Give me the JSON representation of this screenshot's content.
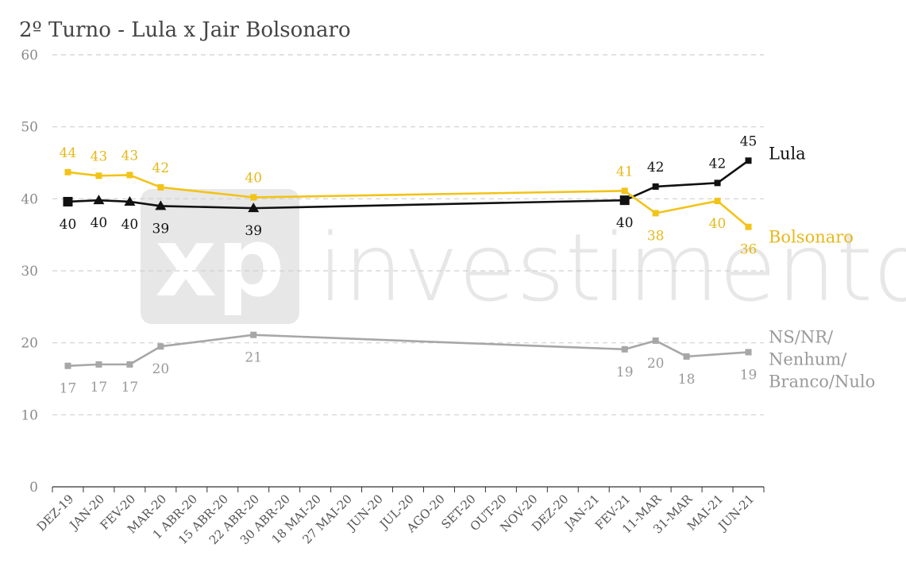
{
  "chart_data": {
    "type": "line",
    "title": "2º Turno - Lula x Jair Bolsonaro",
    "watermark": {
      "logo_text": "xp",
      "text": "investimentos"
    },
    "ylim": [
      0,
      60
    ],
    "yticks": [
      0,
      10,
      20,
      30,
      40,
      50,
      60
    ],
    "grid": true,
    "categories": [
      "DEZ-19",
      "JAN-20",
      "FEV-20",
      "MAR-20",
      "1 ABR-20",
      "15 ABR-20",
      "22 ABR-20",
      "30 ABR-20",
      "18 MAI-20",
      "27 MAI-20",
      "JUN-20",
      "JUL-20",
      "AGO-20",
      "SET-20",
      "OUT-20",
      "NOV-20",
      "DEZ-20",
      "JAN-21",
      "FEV-21",
      "11-MAR",
      "31-MAR",
      "MAI-21",
      "JUN-21"
    ],
    "series": [
      {
        "name": "Lula",
        "color": "#111111",
        "points": [
          {
            "x": "DEZ-19",
            "y": 39.6,
            "label": "40",
            "marker": "square-large",
            "label_pos": "below"
          },
          {
            "x": "JAN-20",
            "y": 39.8,
            "label": "40",
            "marker": "triangle",
            "label_pos": "below"
          },
          {
            "x": "FEV-20",
            "y": 39.6,
            "label": "40",
            "marker": "triangle",
            "label_pos": "below"
          },
          {
            "x": "MAR-20",
            "y": 39.0,
            "label": "39",
            "marker": "triangle",
            "label_pos": "below"
          },
          {
            "x": "22 ABR-20",
            "y": 38.7,
            "label": "39",
            "marker": "triangle",
            "label_pos": "below"
          },
          {
            "x": "FEV-21",
            "y": 39.8,
            "label": "40",
            "marker": "square-large",
            "label_pos": "below"
          },
          {
            "x": "11-MAR",
            "y": 41.7,
            "label": "42",
            "marker": "square-small",
            "label_pos": "above"
          },
          {
            "x": "MAI-21",
            "y": 42.2,
            "label": "42",
            "marker": "square-small",
            "label_pos": "above"
          },
          {
            "x": "JUN-21",
            "y": 45.3,
            "label": "45",
            "marker": "square-small",
            "label_pos": "above"
          }
        ]
      },
      {
        "name": "Bolsonaro",
        "color": "#f2c318",
        "label_color": "#e6b81a",
        "points": [
          {
            "x": "DEZ-19",
            "y": 43.7,
            "label": "44",
            "label_pos": "above"
          },
          {
            "x": "JAN-20",
            "y": 43.2,
            "label": "43",
            "label_pos": "above"
          },
          {
            "x": "FEV-20",
            "y": 43.3,
            "label": "43",
            "label_pos": "above"
          },
          {
            "x": "MAR-20",
            "y": 41.6,
            "label": "42",
            "label_pos": "above"
          },
          {
            "x": "22 ABR-20",
            "y": 40.2,
            "label": "40",
            "label_pos": "above"
          },
          {
            "x": "FEV-21",
            "y": 41.1,
            "label": "41",
            "label_pos": "above"
          },
          {
            "x": "11-MAR",
            "y": 38.0,
            "label": "38",
            "label_pos": "below"
          },
          {
            "x": "MAI-21",
            "y": 39.7,
            "label": "40",
            "label_pos": "below"
          },
          {
            "x": "JUN-21",
            "y": 36.1,
            "label": "36",
            "label_pos": "below"
          }
        ]
      },
      {
        "name": "NS/NR/ Nenhum/ Branco/Nulo",
        "name_lines": [
          "NS/NR/",
          "Nenhum/",
          "Branco/Nulo"
        ],
        "color": "#a7a7a7",
        "label_color": "#9a9a9a",
        "points": [
          {
            "x": "DEZ-19",
            "y": 16.8,
            "label": "17",
            "label_pos": "below"
          },
          {
            "x": "JAN-20",
            "y": 17.0,
            "label": "17",
            "label_pos": "below"
          },
          {
            "x": "FEV-20",
            "y": 17.0,
            "label": "17",
            "label_pos": "below"
          },
          {
            "x": "MAR-20",
            "y": 19.5,
            "label": "20",
            "label_pos": "below"
          },
          {
            "x": "22 ABR-20",
            "y": 21.1,
            "label": "21",
            "label_pos": "below"
          },
          {
            "x": "FEV-21",
            "y": 19.1,
            "label": "19",
            "label_pos": "below"
          },
          {
            "x": "11-MAR",
            "y": 20.3,
            "label": "20",
            "label_pos": "below"
          },
          {
            "x": "31-MAR",
            "y": 18.1,
            "label": "18",
            "label_pos": "below"
          },
          {
            "x": "JUN-21",
            "y": 18.7,
            "label": "19",
            "label_pos": "below"
          }
        ]
      }
    ]
  }
}
